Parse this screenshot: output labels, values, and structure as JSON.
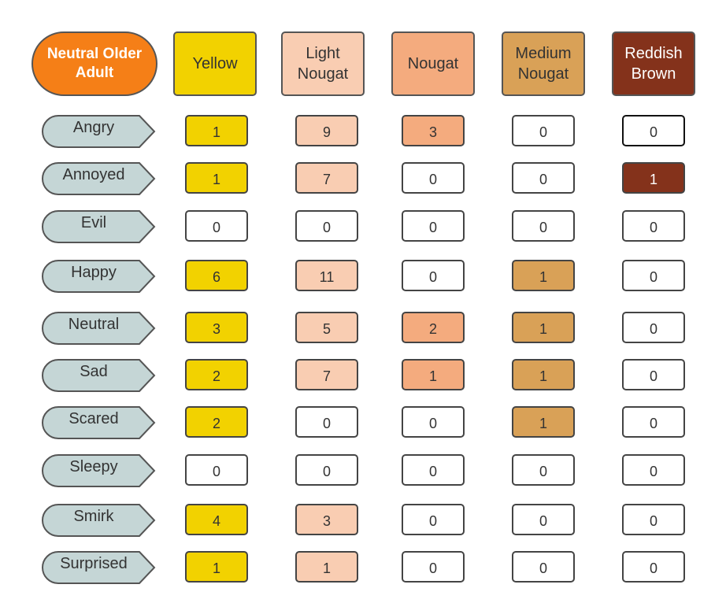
{
  "corner_label": "Neutral Older Adult",
  "columns": [
    {
      "label": "Yellow",
      "color": "#f2d200",
      "text_color": "#333333"
    },
    {
      "label": "Light\nNougat",
      "color": "#f9cdb2",
      "text_color": "#333333"
    },
    {
      "label": "Nougat",
      "color": "#f4ab7e",
      "text_color": "#333333"
    },
    {
      "label": "Medium\nNougat",
      "color": "#d9a157",
      "text_color": "#333333"
    },
    {
      "label": "Reddish\nBrown",
      "color": "#84321b",
      "text_color": "#ffffff"
    }
  ],
  "row_label_color": "#c5d6d6",
  "rows": [
    {
      "label": "Angry",
      "values": [
        1,
        9,
        3,
        0,
        0
      ]
    },
    {
      "label": "Annoyed",
      "values": [
        1,
        7,
        0,
        0,
        1
      ]
    },
    {
      "label": "Evil",
      "values": [
        0,
        0,
        0,
        0,
        0
      ]
    },
    {
      "label": "Happy",
      "values": [
        6,
        11,
        0,
        1,
        0
      ]
    },
    {
      "label": "Neutral",
      "values": [
        3,
        5,
        2,
        1,
        0
      ]
    },
    {
      "label": "Sad",
      "values": [
        2,
        7,
        1,
        1,
        0
      ]
    },
    {
      "label": "Scared",
      "values": [
        2,
        0,
        0,
        1,
        0
      ]
    },
    {
      "label": "Sleepy",
      "values": [
        0,
        0,
        0,
        0,
        0
      ]
    },
    {
      "label": "Smirk",
      "values": [
        4,
        3,
        0,
        0,
        0
      ]
    },
    {
      "label": "Surprised",
      "values": [
        1,
        1,
        0,
        0,
        0
      ]
    }
  ]
}
